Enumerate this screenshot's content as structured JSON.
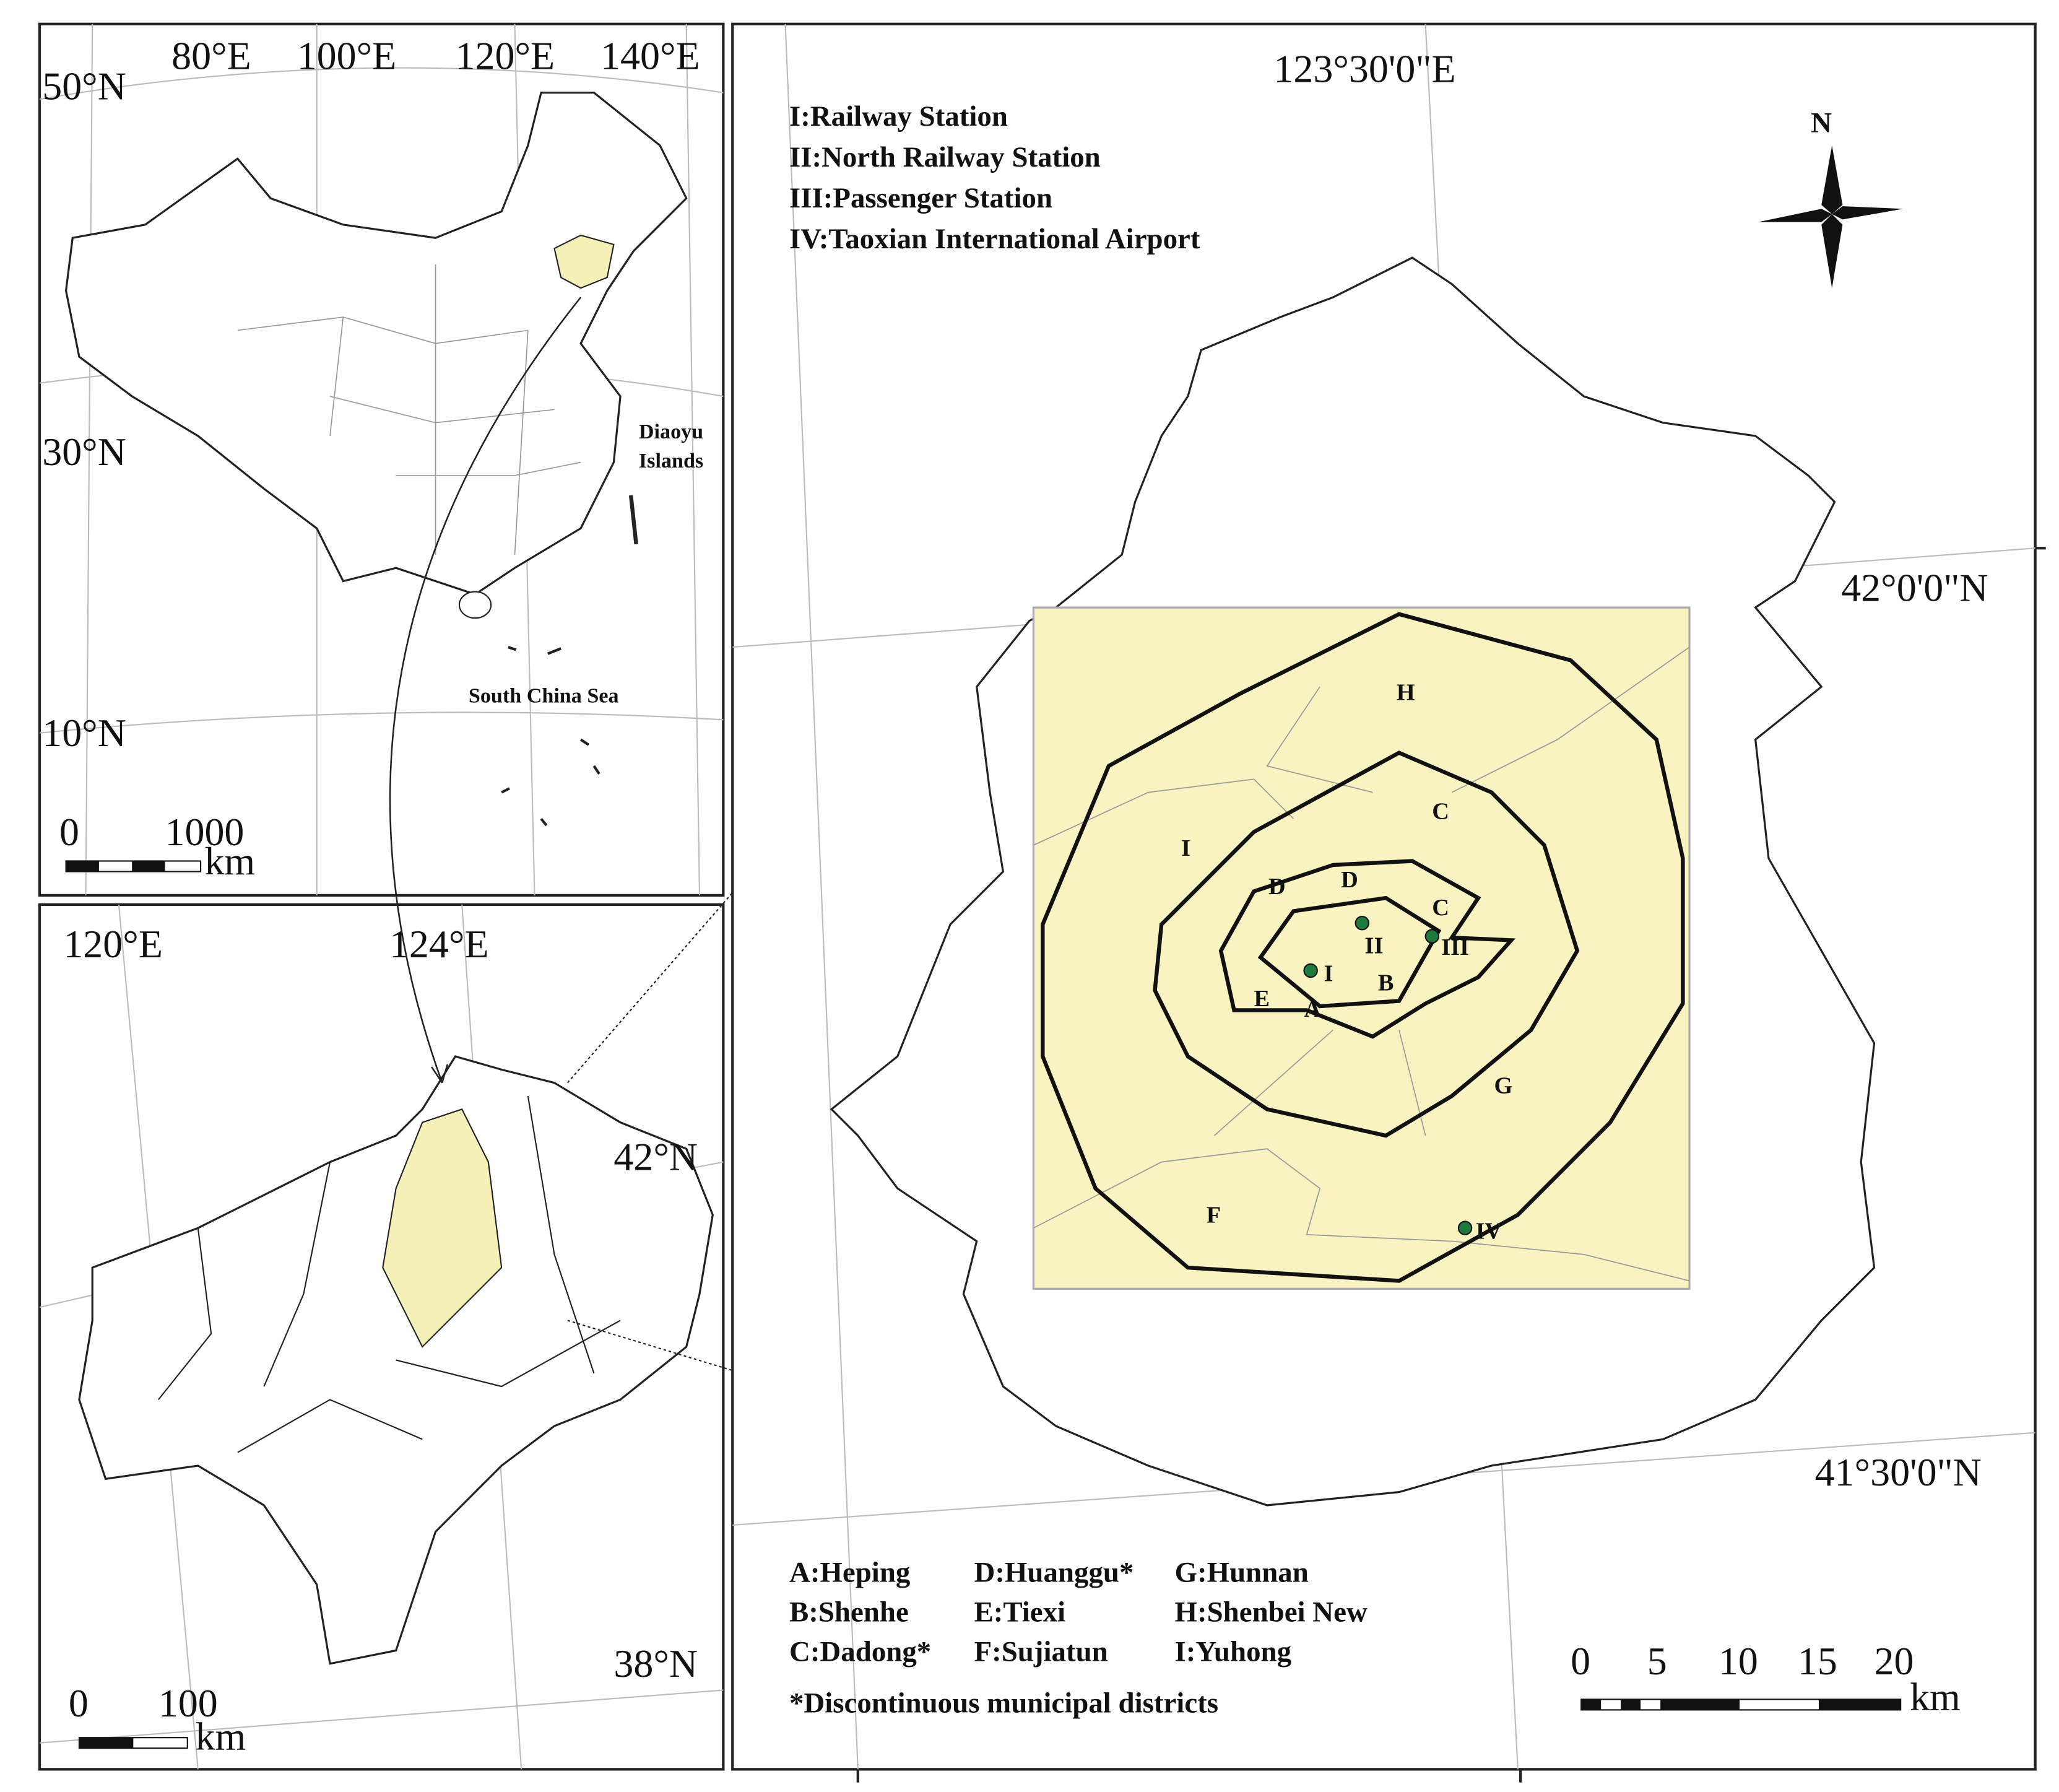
{
  "china_map": {
    "lon_labels": [
      "80°E",
      "100°E",
      "120°E",
      "140°E"
    ],
    "lat_labels": [
      "50°N",
      "30°N",
      "10°N"
    ],
    "annotations": [
      "Diaoyu",
      "Islands",
      "South China Sea"
    ],
    "scale": {
      "ticks": [
        "0",
        "1000"
      ],
      "unit": "km"
    }
  },
  "liaoning_map": {
    "lon_labels": [
      "120°E",
      "124°E"
    ],
    "lat_labels": [
      "42°N",
      "38°N"
    ],
    "scale": {
      "ticks": [
        "0",
        "100"
      ],
      "unit": "km"
    }
  },
  "shenyang_map": {
    "lon_label": "123°30'0\"E",
    "lat_labels": [
      "42°0'0\"N",
      "41°30'0\"N"
    ],
    "north": "N",
    "stations": [
      "I:Railway Station",
      "II:North Railway Station",
      "III:Passenger Station",
      "IV:Taoxian International Airport"
    ],
    "map_labels": [
      "H",
      "I",
      "C",
      "D",
      "D",
      "C",
      "II",
      "III",
      "I",
      "E",
      "A",
      "B",
      "G",
      "F",
      "IV"
    ],
    "districts": [
      "A:Heping",
      "D:Huanggu*",
      "G:Hunnan",
      "B:Shenhe",
      "E:Tiexi",
      "H:Shenbei New",
      "C:Dadong*",
      "F:Sujiatun",
      "I:Yuhong"
    ],
    "note": "*Discontinuous municipal districts",
    "scale": {
      "ticks": [
        "0",
        "5",
        "10",
        "15",
        "20"
      ],
      "unit": "km"
    }
  }
}
